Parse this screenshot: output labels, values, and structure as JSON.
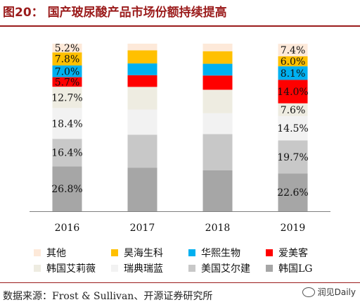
{
  "header": {
    "title": "图20： 国产玻尿酸产品市场份额持续提高"
  },
  "footer": {
    "source": "数据来源：Frost & Sullivan、开源证券研究所",
    "watermark": "润见Daily"
  },
  "chart_data": {
    "type": "bar",
    "stacked": true,
    "normalized": true,
    "categories": [
      "2016",
      "2017",
      "2018",
      "2019"
    ],
    "series": [
      {
        "name": "韩国LG",
        "color": "#a6a6a6",
        "values": [
          26.8,
          26.0,
          24.5,
          22.6
        ],
        "labels": [
          "26.8%",
          "",
          "",
          "22.6%"
        ]
      },
      {
        "name": "美国艾尔建",
        "color": "#c8c8c8",
        "values": [
          16.4,
          19.7,
          21.5,
          19.7
        ],
        "labels": [
          "16.4%",
          "",
          "",
          "19.7%"
        ]
      },
      {
        "name": "瑞典瑞蓝",
        "color": "#f2f2f2",
        "values": [
          18.4,
          15.0,
          12.5,
          14.5
        ],
        "labels": [
          "18.4%",
          "",
          "",
          "14.5%"
        ]
      },
      {
        "name": "韩国艾莉薇",
        "color": "#eeece1",
        "values": [
          12.7,
          13.5,
          14.0,
          7.6
        ],
        "labels": [
          "12.7%",
          "",
          "",
          "7.6%"
        ]
      },
      {
        "name": "爱美客",
        "color": "#ff0000",
        "values": [
          5.7,
          7.0,
          8.5,
          14.0
        ],
        "labels": [
          "5.7%",
          "",
          "",
          "14.0%"
        ]
      },
      {
        "name": "华熙生物",
        "color": "#00b0f0",
        "values": [
          7.0,
          7.0,
          7.0,
          8.1
        ],
        "labels": [
          "7.0%",
          "",
          "",
          "8.1%"
        ]
      },
      {
        "name": "昊海生科",
        "color": "#ffc000",
        "values": [
          7.8,
          7.8,
          7.5,
          6.0
        ],
        "labels": [
          "7.8%",
          "",
          "",
          "6.0%"
        ]
      },
      {
        "name": "其他",
        "color": "#fde9d9",
        "values": [
          5.2,
          4.0,
          4.5,
          7.4
        ],
        "labels": [
          "5.2%",
          "",
          "",
          "7.4%"
        ]
      }
    ],
    "legend_order": [
      "其他",
      "昊海生科",
      "华熙生物",
      "爱美客",
      "韩国艾莉薇",
      "瑞典瑞蓝",
      "美国艾尔建",
      "韩国LG"
    ],
    "legend_placement": "bottom",
    "ylim": [
      0,
      100
    ],
    "grid": false
  }
}
